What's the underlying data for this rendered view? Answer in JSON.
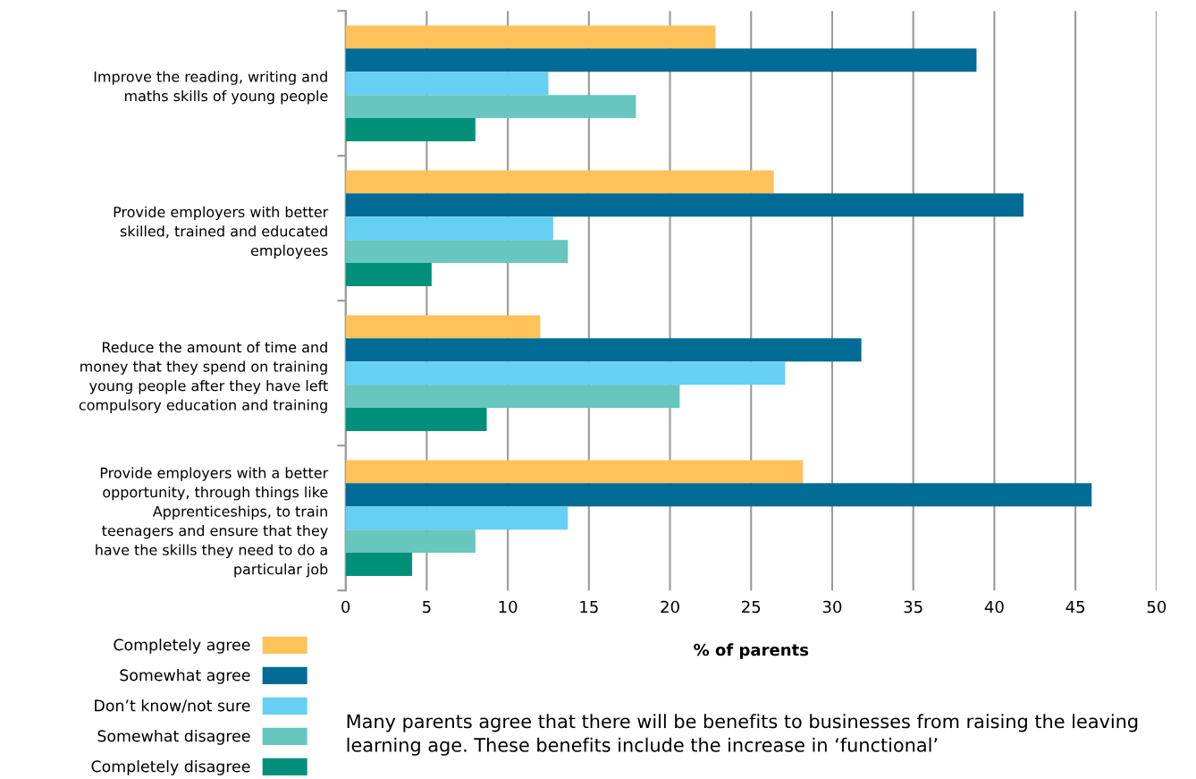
{
  "chart_data": {
    "type": "bar",
    "orientation": "horizontal",
    "xlabel": "% of parents",
    "categories": [
      "Improve the reading, writing and maths skills of young people",
      "Provide employers with better skilled, trained and educated employees",
      "Reduce the amount of time and money that they spend on training young people after they have left compulsory education and training",
      "Provide employers with a better opportunity, through things like Apprenticeships, to train teenagers and ensure that they have the skills they need to do a particular job"
    ],
    "series": [
      {
        "name": "Completely agree",
        "color": "#fdc25a",
        "values": [
          22.8,
          26.4,
          12.0,
          28.2
        ]
      },
      {
        "name": "Somewhat agree",
        "color": "#006b94",
        "values": [
          38.9,
          41.8,
          31.8,
          46.0
        ]
      },
      {
        "name": "Don’t know/not sure",
        "color": "#66cff4",
        "values": [
          12.5,
          12.8,
          27.1,
          13.7
        ]
      },
      {
        "name": "Somewhat disagree",
        "color": "#67c6bd",
        "values": [
          17.9,
          13.7,
          20.6,
          8.0
        ]
      },
      {
        "name": "Completely disagree",
        "color": "#00907a",
        "values": [
          8.0,
          5.3,
          8.7,
          4.1
        ]
      }
    ],
    "xlim": [
      0,
      50
    ],
    "xticks": [
      0,
      5,
      10,
      15,
      20,
      25,
      30,
      35,
      40,
      45,
      50
    ],
    "grid": "x",
    "legend": "bottom left",
    "annotations": [
      "Many parents agree that there will be benefits to businesses from raising the leaving learning age. These benefits include the increase in ‘functional’"
    ]
  }
}
